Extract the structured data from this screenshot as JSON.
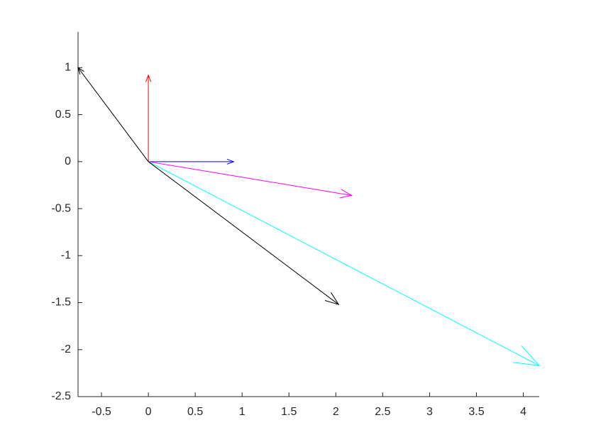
{
  "chart_data": {
    "type": "quiver",
    "arrows": [
      {
        "x": [
          0,
          0
        ],
        "y": [
          0,
          0.92
        ],
        "color": "#ff0000"
      },
      {
        "x": [
          0,
          0.91
        ],
        "y": [
          0,
          0
        ],
        "color": "#0000ff"
      },
      {
        "x": [
          0,
          2.17
        ],
        "y": [
          0,
          -0.36
        ],
        "color": "#ff00ff"
      },
      {
        "x": [
          0,
          4.17
        ],
        "y": [
          0,
          -2.17
        ],
        "color": "#00ffff"
      },
      {
        "x": [
          0,
          2.03
        ],
        "y": [
          0,
          -1.52
        ],
        "color": "#000000"
      },
      {
        "x": [
          0,
          -0.75
        ],
        "y": [
          0,
          1.0
        ],
        "color": "#000000"
      }
    ],
    "xlim": [
      -0.75,
      4.17
    ],
    "ylim": [
      -2.5,
      1.38
    ],
    "xticks": [
      -0.5,
      0,
      0.5,
      1,
      1.5,
      2,
      2.5,
      3,
      3.5,
      4
    ],
    "yticks": [
      -2.5,
      -2,
      -1.5,
      -1,
      -0.5,
      0,
      0.5,
      1
    ]
  }
}
